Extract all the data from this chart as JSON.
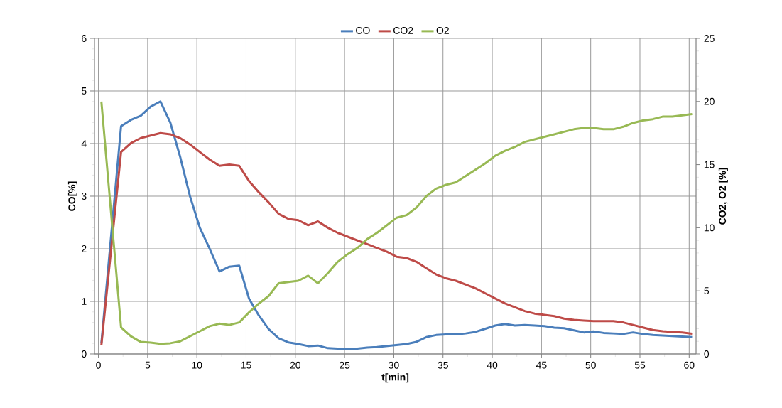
{
  "chart_data": {
    "type": "line",
    "xlabel": "t[min]",
    "ylabel": "CO[%]",
    "y2label": "CO2, O2 [%]",
    "x": [
      0.3,
      2.3,
      3.3,
      4.3,
      5.3,
      6.3,
      7.3,
      8.3,
      9.3,
      10.3,
      11.3,
      12.3,
      13.3,
      14.3,
      15.3,
      16.3,
      17.3,
      18.3,
      19.3,
      20.3,
      21.3,
      22.3,
      23.3,
      24.3,
      25.3,
      26.3,
      27.3,
      28.3,
      29.3,
      30.3,
      31.3,
      32.3,
      33.3,
      34.3,
      35.3,
      36.3,
      37.3,
      38.3,
      39.3,
      40.3,
      41.3,
      42.3,
      43.3,
      44.3,
      45.3,
      46.3,
      47.3,
      48.3,
      49.3,
      50.3,
      51.3,
      52.3,
      53.3,
      54.3,
      55.3,
      56.3,
      57.3,
      58.3,
      59.3,
      60.3
    ],
    "series": [
      {
        "name": "CO",
        "color": "#4a7ebb",
        "values": [
          0.2,
          4.33,
          4.45,
          4.53,
          4.7,
          4.8,
          4.4,
          3.75,
          3.0,
          2.4,
          2.0,
          1.57,
          1.66,
          1.68,
          1.05,
          0.73,
          0.47,
          0.3,
          0.22,
          0.19,
          0.15,
          0.16,
          0.11,
          0.1,
          0.1,
          0.1,
          0.12,
          0.13,
          0.15,
          0.17,
          0.19,
          0.23,
          0.32,
          0.36,
          0.37,
          0.37,
          0.39,
          0.42,
          0.48,
          0.54,
          0.57,
          0.54,
          0.55,
          0.54,
          0.53,
          0.5,
          0.49,
          0.45,
          0.41,
          0.43,
          0.4,
          0.39,
          0.38,
          0.41,
          0.38,
          0.36,
          0.35,
          0.34,
          0.33,
          0.32
        ]
      },
      {
        "name": "CO2",
        "color": "#be4b48",
        "axis": "y2",
        "values": [
          0.7,
          16.0,
          16.7,
          17.1,
          17.3,
          17.5,
          17.4,
          17.1,
          16.6,
          16.0,
          15.4,
          14.9,
          15.0,
          14.9,
          13.7,
          12.8,
          12.0,
          11.1,
          10.7,
          10.6,
          10.2,
          10.5,
          10.0,
          9.6,
          9.3,
          9.0,
          8.7,
          8.4,
          8.1,
          7.7,
          7.6,
          7.3,
          6.8,
          6.3,
          6.0,
          5.8,
          5.5,
          5.2,
          4.8,
          4.4,
          4.0,
          3.7,
          3.4,
          3.2,
          3.1,
          3.0,
          2.8,
          2.7,
          2.65,
          2.6,
          2.6,
          2.6,
          2.5,
          2.3,
          2.1,
          1.9,
          1.8,
          1.75,
          1.7,
          1.6
        ]
      },
      {
        "name": "O2",
        "color": "#98b954",
        "axis": "y2",
        "values": [
          20.0,
          2.1,
          1.4,
          0.95,
          0.9,
          0.8,
          0.85,
          1.0,
          1.4,
          1.8,
          2.2,
          2.4,
          2.3,
          2.5,
          3.3,
          4.0,
          4.6,
          5.6,
          5.7,
          5.8,
          6.2,
          5.6,
          6.4,
          7.3,
          7.9,
          8.4,
          9.1,
          9.6,
          10.2,
          10.8,
          11.0,
          11.6,
          12.5,
          13.1,
          13.4,
          13.6,
          14.1,
          14.6,
          15.1,
          15.7,
          16.1,
          16.4,
          16.8,
          17.0,
          17.2,
          17.4,
          17.6,
          17.8,
          17.9,
          17.9,
          17.8,
          17.8,
          18.0,
          18.3,
          18.5,
          18.6,
          18.8,
          18.8,
          18.9,
          19.0
        ]
      }
    ],
    "xlim": [
      -0.4,
      60.7
    ],
    "xticks": [
      0,
      5,
      10,
      15,
      20,
      25,
      30,
      35,
      40,
      45,
      50,
      55,
      60
    ],
    "ylim": [
      0,
      6
    ],
    "yticks": [
      0,
      1,
      2,
      3,
      4,
      5,
      6
    ],
    "y2lim": [
      0,
      25
    ],
    "y2ticks": [
      0,
      5,
      10,
      15,
      20,
      25
    ],
    "grid": true,
    "legend": "top",
    "marker": "none",
    "line_style": "solid"
  }
}
